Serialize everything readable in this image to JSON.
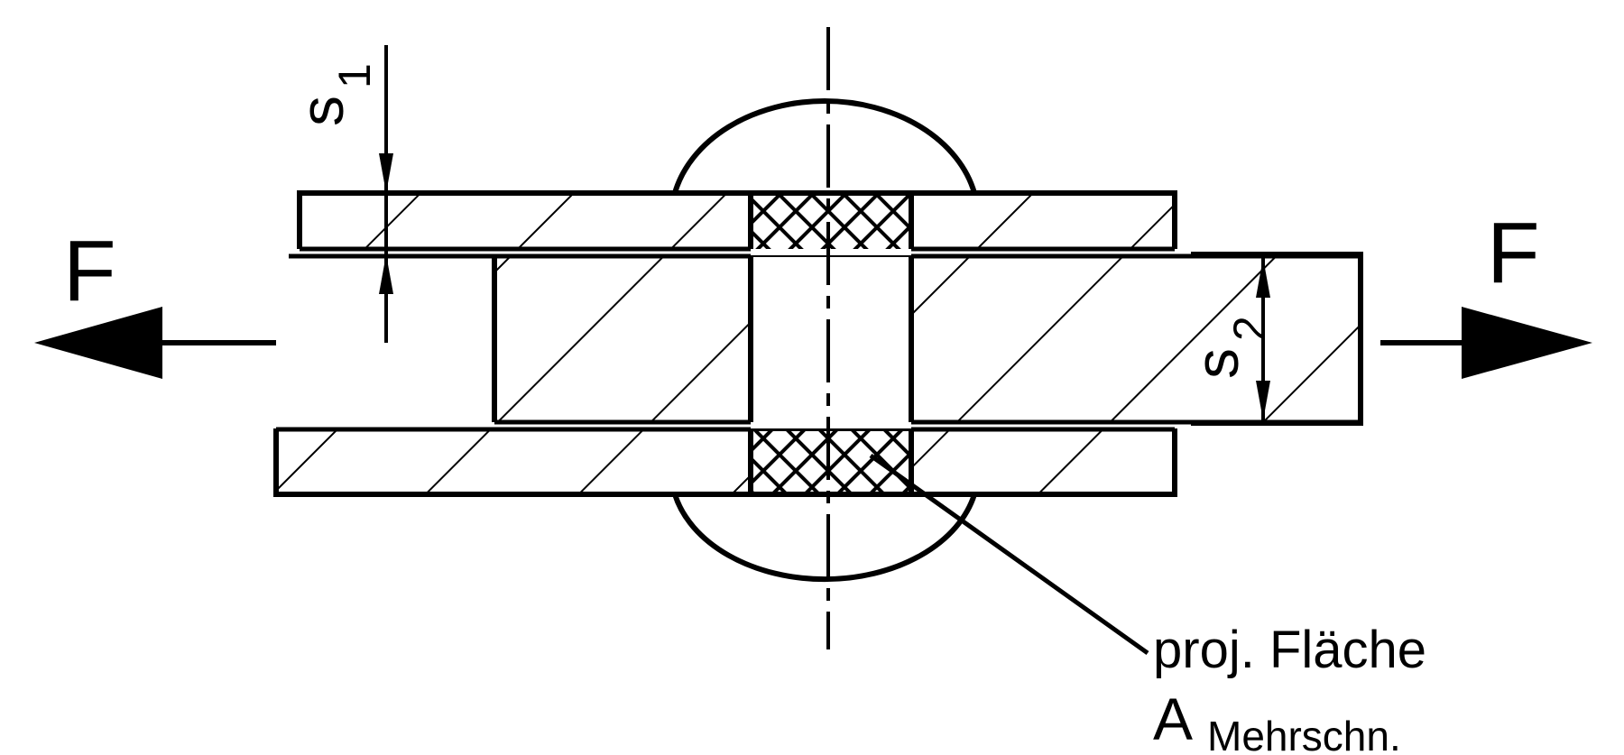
{
  "labels": {
    "force_left": "F",
    "force_right": "F",
    "s1_main": "s",
    "s1_sub": "1",
    "s2_main": "s",
    "s2_sub": "2",
    "callout_line1": "proj. Fläche",
    "callout_main": "A",
    "callout_sub": "Mehrschn."
  },
  "colors": {
    "ink": "#000000",
    "paper": "#ffffff"
  }
}
